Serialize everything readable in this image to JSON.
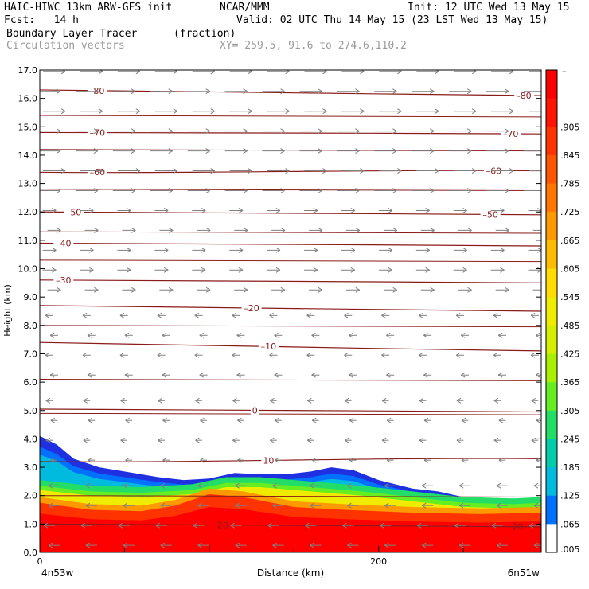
{
  "header": {
    "model": "HAIC-HIWC 13km ARW-GFS init",
    "org": "NCAR/MMM",
    "init": "Init: 12 UTC Wed 13 May 15",
    "fcst": "Fcst:   14 h",
    "valid": "Valid: 02 UTC Thu 14 May 15 (23 LST Wed 13 May 15)",
    "field": "Boundary Layer Tracer",
    "field_units": "(fraction)",
    "vectors": "Circulation vectors",
    "xy": "XY= 259.5, 91.6 to 274.6,110.2"
  },
  "colors": {
    "background": "#ffffff",
    "contour": "#8b1a1a",
    "vector": "#808080",
    "shade_scale": [
      "#ffffff",
      "#ff0000",
      "#ff1500",
      "#ff3300",
      "#ff5500",
      "#ff7700",
      "#ff9900",
      "#ffbb00",
      "#ffdd00",
      "#f0ec00",
      "#d4f000",
      "#a8f000",
      "#66ee22",
      "#22dd66",
      "#00ccaa",
      "#00bbdd",
      "#0099ff",
      "#0070ff",
      "#0048ee",
      "#1e30e0",
      "#2a1ad0",
      "#4010c0"
    ]
  },
  "chart_data": {
    "type": "heatmap",
    "title": "Boundary Layer Tracer",
    "units": "(fraction)",
    "overlay": "Circulation vectors",
    "xlabel": "Distance (km)",
    "ylabel": "Height (km)",
    "xlim": [
      0,
      296
    ],
    "ylim": [
      0,
      17
    ],
    "x_ticks": [
      0,
      200
    ],
    "y_ticks": [
      "0.0",
      "1.0",
      "2.0",
      "3.0",
      "4.0",
      "5.0",
      "6.0",
      "7.0",
      "8.0",
      "9.0",
      "10.0",
      "11.0",
      "12.0",
      "13.0",
      "14.0",
      "15.0",
      "16.0",
      "17.0"
    ],
    "x_endpoints": {
      "left": "4n53w",
      "right": "6n51w"
    },
    "colorbar": {
      "top_label": "–",
      "labels": [
        ".905",
        ".845",
        ".785",
        ".725",
        ".665",
        ".605",
        ".545",
        ".485",
        ".425",
        ".365",
        ".305",
        ".245",
        ".185",
        ".125",
        ".065",
        ".005"
      ]
    },
    "tracer_top_km": [
      [
        0,
        4.1
      ],
      [
        10,
        3.8
      ],
      [
        20,
        3.3
      ],
      [
        35,
        3.0
      ],
      [
        50,
        2.85
      ],
      [
        70,
        2.65
      ],
      [
        85,
        2.55
      ],
      [
        100,
        2.6
      ],
      [
        115,
        2.8
      ],
      [
        130,
        2.75
      ],
      [
        145,
        2.75
      ],
      [
        160,
        2.85
      ],
      [
        172,
        3.0
      ],
      [
        185,
        2.9
      ],
      [
        200,
        2.55
      ],
      [
        220,
        2.25
      ],
      [
        235,
        2.15
      ],
      [
        250,
        1.95
      ],
      [
        265,
        1.9
      ],
      [
        280,
        1.85
      ],
      [
        296,
        1.85
      ]
    ],
    "tracer_mid_km": [
      [
        0,
        2.2
      ],
      [
        30,
        2.0
      ],
      [
        60,
        1.95
      ],
      [
        90,
        2.05
      ],
      [
        110,
        2.3
      ],
      [
        130,
        2.3
      ],
      [
        160,
        2.15
      ],
      [
        190,
        2.0
      ],
      [
        220,
        1.8
      ],
      [
        250,
        1.6
      ],
      [
        280,
        1.55
      ],
      [
        296,
        1.6
      ]
    ],
    "tracer_high_km": [
      [
        0,
        1.75
      ],
      [
        30,
        1.5
      ],
      [
        60,
        1.45
      ],
      [
        80,
        1.65
      ],
      [
        100,
        2.05
      ],
      [
        120,
        1.95
      ],
      [
        150,
        1.6
      ],
      [
        180,
        1.5
      ],
      [
        220,
        1.4
      ],
      [
        260,
        1.35
      ],
      [
        296,
        1.4
      ]
    ],
    "temperature_contours_C": [
      {
        "value": -80,
        "labels": [
          "-80",
          "-80"
        ],
        "y_start": 16.3,
        "y_end": 16.1,
        "label_x": [
          34,
          286
        ]
      },
      {
        "value": -70,
        "labels": [
          "–70",
          "–70"
        ],
        "y_start": 14.8,
        "y_end": 14.75,
        "label_x": [
          34,
          278
        ]
      },
      {
        "value": -60,
        "labels": [
          "–60",
          "–60"
        ],
        "y_start": 13.4,
        "y_end": 13.45,
        "label_x": [
          34,
          268
        ]
      },
      {
        "value": -50,
        "labels": [
          "–50",
          "–50"
        ],
        "y_start": 12.0,
        "y_end": 11.9,
        "label_x": [
          20,
          266
        ]
      },
      {
        "value": -40,
        "labels": [
          "–40"
        ],
        "y_start": 10.9,
        "y_end": 10.8,
        "label_x": [
          14
        ]
      },
      {
        "value": -30,
        "labels": [
          "–30"
        ],
        "y_start": 9.6,
        "y_end": 9.5,
        "label_x": [
          14
        ]
      },
      {
        "value": -20,
        "labels": [
          "–20"
        ],
        "y_start": 8.7,
        "y_end": 8.5,
        "label_x": [
          125
        ]
      },
      {
        "value": -10,
        "labels": [
          "–10"
        ],
        "y_start": 7.4,
        "y_end": 7.1,
        "label_x": [
          135
        ]
      },
      {
        "value": 0,
        "labels": [
          "0"
        ],
        "y_start": 5.05,
        "y_end": 4.95,
        "label_x": [
          127
        ]
      },
      {
        "value": 10,
        "labels": [
          "10"
        ],
        "y_start": 3.2,
        "y_end": 3.3,
        "label_x": [
          135
        ]
      },
      {
        "value": 20,
        "labels": [
          "20",
          "20"
        ],
        "y_start": 1.0,
        "y_end": 0.9,
        "label_x": [
          108,
          282
        ]
      }
    ],
    "extra_lines_km": [
      15.4,
      14.2,
      12.8,
      11.3,
      10.3,
      8.0,
      6.1,
      4.9,
      2.0
    ],
    "wind_vectors": [
      {
        "zmin": 12.5,
        "zmax": 17.0,
        "direction": "east",
        "length": 1.0
      },
      {
        "zmin": 9.0,
        "zmax": 12.5,
        "direction": "east",
        "length": 0.6
      },
      {
        "zmin": 6.0,
        "zmax": 9.0,
        "direction": "west",
        "length": 0.35
      },
      {
        "zmin": 3.0,
        "zmax": 6.0,
        "direction": "west",
        "length": 0.3
      },
      {
        "zmin": 0.0,
        "zmax": 3.0,
        "direction": "west",
        "length": 0.5
      }
    ]
  }
}
